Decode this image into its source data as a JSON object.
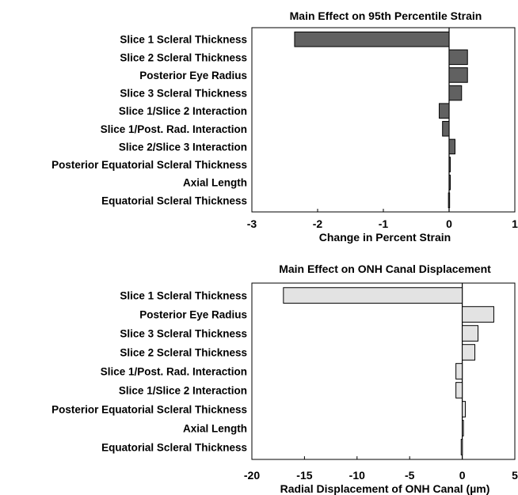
{
  "chart_data": [
    {
      "type": "bar",
      "orientation": "horizontal",
      "title": "Main Effect on 95th Percentile Strain",
      "xlabel": "Change in Percent Strain",
      "categories": [
        "Slice 1 Scleral Thickness",
        "Slice 2 Scleral Thickness",
        "Posterior Eye Radius",
        "Slice 3 Scleral Thickness",
        "Slice 1/Slice 2 Interaction",
        "Slice 1/Post. Rad. Interaction",
        "Slice 2/Slice 3 Interaction",
        "Posterior Equatorial Scleral Thickness",
        "Axial Length",
        "Equatorial Scleral Thickness"
      ],
      "values": [
        -2.35,
        0.28,
        0.28,
        0.19,
        -0.15,
        -0.1,
        0.09,
        0.01,
        0.01,
        -0.01
      ],
      "xlim": [
        -3,
        1
      ],
      "xticks": [
        -3,
        -2,
        -1,
        0,
        1
      ],
      "bar_color": "#616161",
      "grid": false
    },
    {
      "type": "bar",
      "orientation": "horizontal",
      "title": "Main Effect on ONH Canal Displacement",
      "xlabel": "Radial Displacement of ONH Canal (µm)",
      "categories": [
        "Slice 1 Scleral Thickness",
        "Posterior Eye Radius",
        "Slice 3 Scleral Thickness",
        "Slice 2 Scleral Thickness",
        "Slice 1/Post. Rad. Interaction",
        "Slice 1/Slice 2 Interaction",
        "Posterior Equatorial Scleral Thickness",
        "Axial Length",
        "Equatorial Scleral Thickness"
      ],
      "values": [
        -17.0,
        3.0,
        1.5,
        1.2,
        -0.6,
        -0.6,
        0.3,
        0.1,
        -0.1
      ],
      "xlim": [
        -20,
        5
      ],
      "xticks": [
        -20,
        -15,
        -10,
        -5,
        0,
        5
      ],
      "bar_color": "#e3e3e3",
      "grid": false
    }
  ]
}
